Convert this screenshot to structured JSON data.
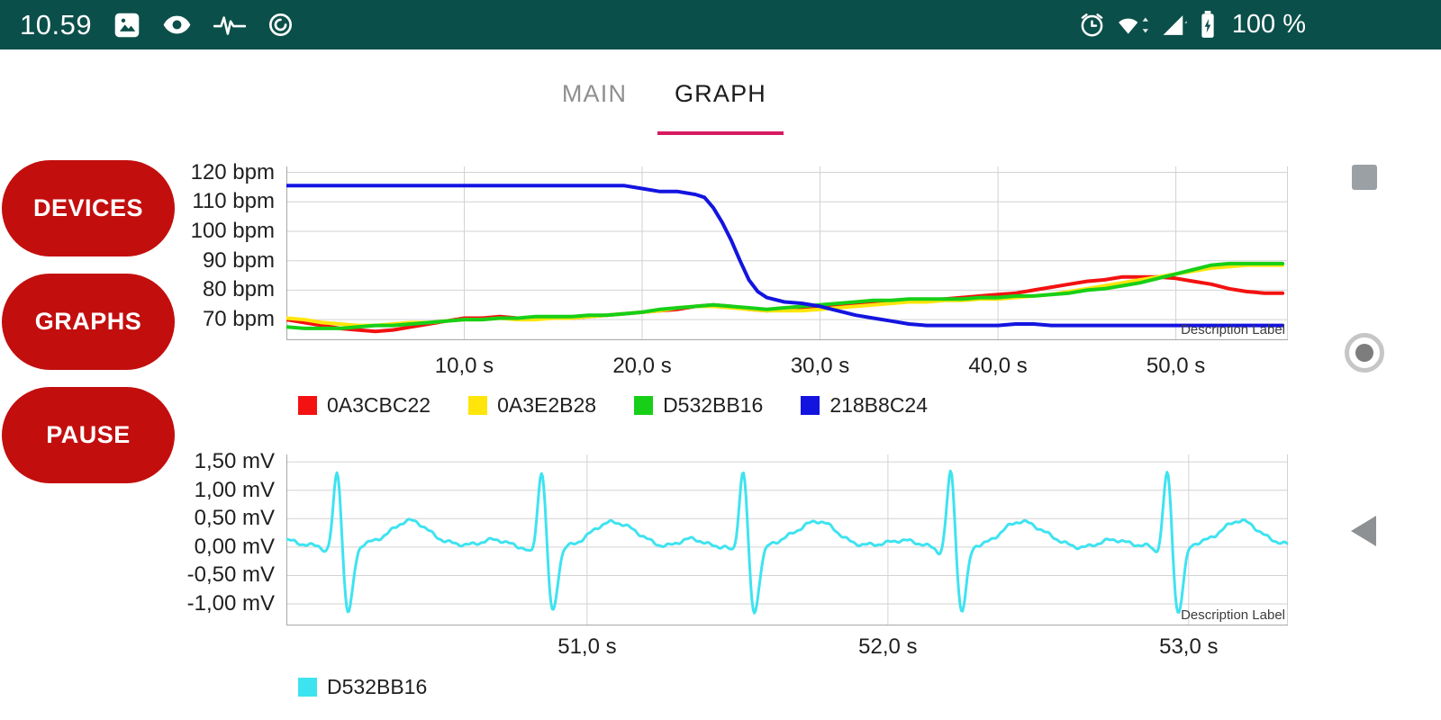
{
  "status_bar": {
    "bg": "#0b4f4a",
    "time": "10.59",
    "battery_label": "100 %",
    "left_icons": [
      "gallery-icon",
      "eye-icon",
      "waveform-icon",
      "data-saver-icon"
    ],
    "right_icons": [
      "alarm-icon",
      "wifi-icon",
      "cellular-signal-icon",
      "battery-charging-icon"
    ]
  },
  "tabs": {
    "main": "MAIN",
    "graph": "GRAPH",
    "active": "GRAPH",
    "underline_color": "#d81b60"
  },
  "buttons": {
    "devices": "DEVICES",
    "graphs": "GRAPHS",
    "pause": "PAUSE",
    "color": "#c30e0e",
    "text_color": "#ffffff"
  },
  "nav_bar": {
    "buttons": [
      "recents-button",
      "home-button",
      "back-button"
    ],
    "icon_color": "#9aa0a3"
  },
  "chart_data": [
    {
      "id": "hr",
      "type": "line",
      "title": "",
      "xlabel": "",
      "ylabel": "bpm",
      "description": "Description Label",
      "xlim": [
        0,
        56.3
      ],
      "ylim": [
        63,
        122
      ],
      "grid_color": "#d2d2d2",
      "axis_color": "#a8a8a8",
      "x_ticks": [
        {
          "v": 10,
          "label": "10,0 s"
        },
        {
          "v": 20,
          "label": "20,0 s"
        },
        {
          "v": 30,
          "label": "30,0 s"
        },
        {
          "v": 40,
          "label": "40,0 s"
        },
        {
          "v": 50,
          "label": "50,0 s"
        }
      ],
      "y_ticks": [
        {
          "v": 120,
          "label": "120 bpm"
        },
        {
          "v": 110,
          "label": "110 bpm"
        },
        {
          "v": 100,
          "label": "100 bpm"
        },
        {
          "v": 90,
          "label": "90 bpm"
        },
        {
          "v": 80,
          "label": "80 bpm"
        },
        {
          "v": 70,
          "label": "70 bpm"
        }
      ],
      "series": [
        {
          "name": "0A3CBC22",
          "color": "#f31111",
          "stroke_width": 4,
          "points": [
            [
              0,
              70
            ],
            [
              1,
              69
            ],
            [
              2,
              68
            ],
            [
              3,
              67
            ],
            [
              4,
              66.5
            ],
            [
              5,
              66
            ],
            [
              6,
              66.5
            ],
            [
              7,
              67.5
            ],
            [
              8,
              68.5
            ],
            [
              9,
              69.5
            ],
            [
              10,
              70.5
            ],
            [
              11,
              70.5
            ],
            [
              12,
              71
            ],
            [
              13,
              70.5
            ],
            [
              14,
              70.5
            ],
            [
              15,
              70.5
            ],
            [
              16,
              70.5
            ],
            [
              17,
              71
            ],
            [
              18,
              71.5
            ],
            [
              19,
              72
            ],
            [
              20,
              72.5
            ],
            [
              21,
              73
            ],
            [
              22,
              73.5
            ],
            [
              23,
              74.5
            ],
            [
              24,
              75
            ],
            [
              25,
              74.5
            ],
            [
              26,
              73.5
            ],
            [
              27,
              73
            ],
            [
              28,
              73.5
            ],
            [
              29,
              73.5
            ],
            [
              30,
              74
            ],
            [
              31,
              74.5
            ],
            [
              32,
              75
            ],
            [
              33,
              75.5
            ],
            [
              34,
              76
            ],
            [
              35,
              76
            ],
            [
              36,
              76.5
            ],
            [
              37,
              77
            ],
            [
              38,
              77.5
            ],
            [
              39,
              78
            ],
            [
              40,
              78.5
            ],
            [
              41,
              79
            ],
            [
              42,
              80
            ],
            [
              43,
              81
            ],
            [
              44,
              82
            ],
            [
              45,
              83
            ],
            [
              46,
              83.5
            ],
            [
              47,
              84.5
            ],
            [
              48,
              84.5
            ],
            [
              49,
              84.5
            ],
            [
              50,
              84
            ],
            [
              51,
              83
            ],
            [
              52,
              82
            ],
            [
              53,
              80.5
            ],
            [
              54,
              79.5
            ],
            [
              55,
              79
            ],
            [
              56,
              79
            ]
          ]
        },
        {
          "name": "0A3E2B28",
          "color": "#ffe50a",
          "stroke_width": 4,
          "points": [
            [
              0,
              70.5
            ],
            [
              1,
              70
            ],
            [
              2,
              69
            ],
            [
              3,
              68.5
            ],
            [
              4,
              68
            ],
            [
              5,
              68
            ],
            [
              6,
              68.5
            ],
            [
              7,
              69
            ],
            [
              8,
              69
            ],
            [
              9,
              69.5
            ],
            [
              10,
              70
            ],
            [
              11,
              70
            ],
            [
              12,
              70.5
            ],
            [
              13,
              70
            ],
            [
              14,
              70
            ],
            [
              15,
              70.5
            ],
            [
              16,
              70.5
            ],
            [
              17,
              71
            ],
            [
              18,
              71.5
            ],
            [
              19,
              72
            ],
            [
              20,
              72.5
            ],
            [
              21,
              73
            ],
            [
              22,
              74
            ],
            [
              23,
              74.5
            ],
            [
              24,
              74.5
            ],
            [
              25,
              74
            ],
            [
              26,
              73.5
            ],
            [
              27,
              73
            ],
            [
              28,
              73
            ],
            [
              29,
              73
            ],
            [
              30,
              73.5
            ],
            [
              31,
              74
            ],
            [
              32,
              74.5
            ],
            [
              33,
              75
            ],
            [
              34,
              75.5
            ],
            [
              35,
              76
            ],
            [
              36,
              76
            ],
            [
              37,
              76.5
            ],
            [
              38,
              76.5
            ],
            [
              39,
              77
            ],
            [
              40,
              77
            ],
            [
              41,
              77.5
            ],
            [
              42,
              78
            ],
            [
              43,
              78.5
            ],
            [
              44,
              79.5
            ],
            [
              45,
              80.5
            ],
            [
              46,
              81.5
            ],
            [
              47,
              82.5
            ],
            [
              48,
              83.5
            ],
            [
              49,
              84.5
            ],
            [
              50,
              85.5
            ],
            [
              51,
              86.5
            ],
            [
              52,
              87.5
            ],
            [
              53,
              88
            ],
            [
              54,
              88.5
            ],
            [
              55,
              88.5
            ],
            [
              56,
              88.5
            ]
          ]
        },
        {
          "name": "D532BB16",
          "color": "#17cf17",
          "stroke_width": 4,
          "points": [
            [
              0,
              67.5
            ],
            [
              1,
              67
            ],
            [
              2,
              67
            ],
            [
              3,
              67
            ],
            [
              4,
              67.5
            ],
            [
              5,
              68
            ],
            [
              6,
              68
            ],
            [
              7,
              68.5
            ],
            [
              8,
              69
            ],
            [
              9,
              69.5
            ],
            [
              10,
              70
            ],
            [
              11,
              70
            ],
            [
              12,
              70.5
            ],
            [
              13,
              70.5
            ],
            [
              14,
              71
            ],
            [
              15,
              71
            ],
            [
              16,
              71
            ],
            [
              17,
              71.5
            ],
            [
              18,
              71.5
            ],
            [
              19,
              72
            ],
            [
              20,
              72.5
            ],
            [
              21,
              73.5
            ],
            [
              22,
              74
            ],
            [
              23,
              74.5
            ],
            [
              24,
              75
            ],
            [
              25,
              74.5
            ],
            [
              26,
              74
            ],
            [
              27,
              73.5
            ],
            [
              28,
              74
            ],
            [
              29,
              74.5
            ],
            [
              30,
              75
            ],
            [
              31,
              75.5
            ],
            [
              32,
              76
            ],
            [
              33,
              76.5
            ],
            [
              34,
              76.5
            ],
            [
              35,
              77
            ],
            [
              36,
              77
            ],
            [
              37,
              77
            ],
            [
              38,
              77
            ],
            [
              39,
              77.5
            ],
            [
              40,
              77.5
            ],
            [
              41,
              78
            ],
            [
              42,
              78
            ],
            [
              43,
              78.5
            ],
            [
              44,
              79
            ],
            [
              45,
              80
            ],
            [
              46,
              80.5
            ],
            [
              47,
              81.5
            ],
            [
              48,
              82.5
            ],
            [
              49,
              84
            ],
            [
              50,
              85.5
            ],
            [
              51,
              87
            ],
            [
              52,
              88.5
            ],
            [
              53,
              89
            ],
            [
              54,
              89
            ],
            [
              55,
              89
            ],
            [
              56,
              89
            ]
          ]
        },
        {
          "name": "218B8C24",
          "color": "#1414e0",
          "stroke_width": 4,
          "points": [
            [
              0,
              115.5
            ],
            [
              4,
              115.5
            ],
            [
              8,
              115.5
            ],
            [
              12,
              115.5
            ],
            [
              16,
              115.5
            ],
            [
              19,
              115.5
            ],
            [
              20,
              114.5
            ],
            [
              21,
              113.5
            ],
            [
              22,
              113.5
            ],
            [
              23,
              112.5
            ],
            [
              23.5,
              111.5
            ],
            [
              24,
              108
            ],
            [
              24.5,
              103
            ],
            [
              25,
              97
            ],
            [
              25.5,
              90
            ],
            [
              26,
              83.5
            ],
            [
              26.5,
              79.5
            ],
            [
              27,
              77.5
            ],
            [
              28,
              76
            ],
            [
              29,
              75.5
            ],
            [
              30,
              74.5
            ],
            [
              31,
              73
            ],
            [
              32,
              71.5
            ],
            [
              33,
              70.5
            ],
            [
              34,
              69.5
            ],
            [
              35,
              68.5
            ],
            [
              36,
              68
            ],
            [
              38,
              68
            ],
            [
              40,
              68
            ],
            [
              41,
              68.5
            ],
            [
              42,
              68.5
            ],
            [
              43,
              68
            ],
            [
              46,
              68
            ],
            [
              50,
              68
            ],
            [
              53,
              68
            ],
            [
              56,
              68
            ]
          ]
        }
      ]
    },
    {
      "id": "ecg",
      "type": "line",
      "title": "",
      "xlabel": "",
      "ylabel": "mV",
      "description": "Description Label",
      "xlim": [
        50,
        53.33
      ],
      "ylim": [
        -1.38,
        1.63
      ],
      "grid_color": "#d2d2d2",
      "axis_color": "#a8a8a8",
      "x_ticks": [
        {
          "v": 51,
          "label": "51,0 s"
        },
        {
          "v": 52,
          "label": "52,0 s"
        },
        {
          "v": 53,
          "label": "53,0 s"
        }
      ],
      "y_ticks": [
        {
          "v": 1.5,
          "label": "1,50 mV"
        },
        {
          "v": 1.0,
          "label": "1,00 mV"
        },
        {
          "v": 0.5,
          "label": "0,50 mV"
        },
        {
          "v": 0,
          "label": "0,00 mV"
        },
        {
          "v": -0.5,
          "label": "-0,50 mV"
        },
        {
          "v": -1.0,
          "label": "-1,00 mV"
        }
      ],
      "series": [
        {
          "name": "D532BB16",
          "color": "#3ee3f0",
          "stroke_width": 3,
          "waveform": {
            "t_start": 50,
            "t_end": 53.33,
            "dt": 0.004,
            "baseline_noise": [
              [
                0.022,
                95,
                0
              ],
              [
                0.016,
                41,
                1.7
              ],
              [
                0.012,
                233,
                0.5
              ]
            ],
            "beats": [
              50.17,
              50.85,
              51.52,
              52.21,
              52.93
            ],
            "components": [
              {
                "amp": 0.13,
                "center": -0.17,
                "sigma": 0.045
              },
              {
                "amp": -0.1,
                "center": -0.035,
                "sigma": 0.012
              },
              {
                "amp": 1.42,
                "center": 0,
                "sigma": 0.013
              },
              {
                "amp": -1.18,
                "center": 0.035,
                "sigma": 0.016
              },
              {
                "amp": 0.45,
                "center": 0.24,
                "sigma": 0.07
              }
            ]
          }
        }
      ]
    }
  ]
}
